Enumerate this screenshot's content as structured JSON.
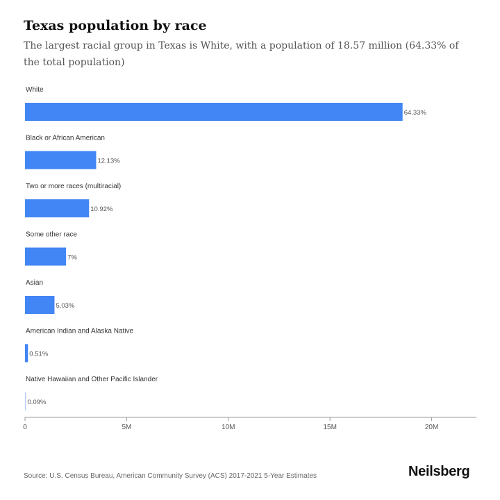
{
  "header": {
    "title": "Texas population by race",
    "subtitle": "The largest racial group in Texas is White, with a population of 18.57 million (64.33% of the total population)"
  },
  "chart_data": {
    "type": "bar",
    "orientation": "horizontal",
    "title": "Texas population by race",
    "categories": [
      "White",
      "Black or African American",
      "Two or more races (multiracial)",
      "Some other race",
      "Asian",
      "American Indian and Alaska Native",
      "Native Hawaiian and Other Pacific Islander"
    ],
    "values": [
      18570000,
      3500000,
      3150000,
      2020000,
      1450000,
      147000,
      26000
    ],
    "labels": [
      "64.33%",
      "12.13%",
      "10.92%",
      "7%",
      "5.03%",
      "0.51%",
      "0.09%"
    ],
    "xlim": [
      0,
      22200000
    ],
    "xticks": [
      0,
      5000000,
      10000000,
      15000000,
      20000000
    ],
    "xtick_labels": [
      "0",
      "5M",
      "10M",
      "15M",
      "20M"
    ],
    "grid": false,
    "bar_color": "#4285f4"
  },
  "footer": {
    "source": "Source: U.S. Census Bureau, American Community Survey (ACS) 2017-2021 5-Year Estimates",
    "brand": "Neilsberg"
  }
}
